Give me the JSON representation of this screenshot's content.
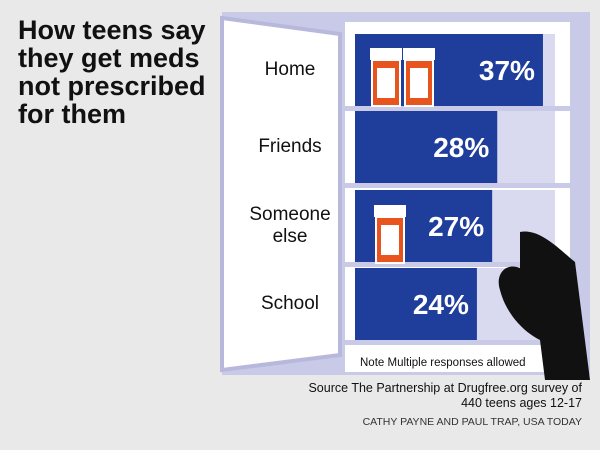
{
  "chart_data": {
    "type": "bar",
    "orientation": "horizontal",
    "title": "How teens say they get meds not prescribed for them",
    "categories": [
      "Home",
      "Friends",
      "Someone else",
      "School"
    ],
    "values": [
      37,
      28,
      27,
      24
    ],
    "value_labels": [
      "37%",
      "28%",
      "27%",
      "24%"
    ],
    "color": "#1f3e9c",
    "note": "Note Multiple responses allowed",
    "source": "Source The Partnership at Drugfree.org survey of 440 teens ages 12-17",
    "credit": "CATHY PAYNE AND PAUL TRAP, USA TODAY"
  }
}
